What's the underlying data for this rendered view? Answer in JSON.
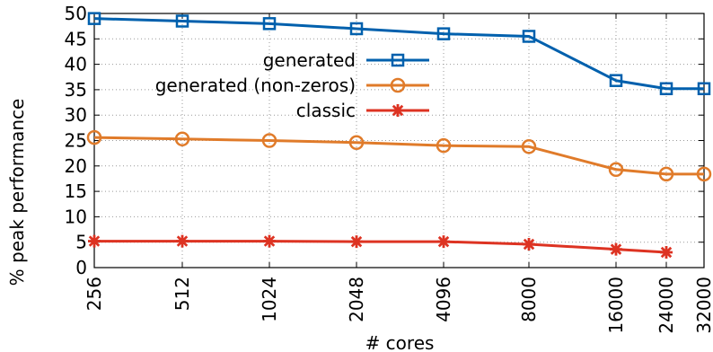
{
  "chart_data": {
    "type": "line",
    "xlabel": "# cores",
    "ylabel": "% peak performance",
    "categories": [
      "256",
      "512",
      "1024",
      "2048",
      "4096",
      "8000",
      "16000",
      "24000",
      "32000"
    ],
    "ylim": [
      0,
      50
    ],
    "yticks": [
      0,
      5,
      10,
      15,
      20,
      25,
      30,
      35,
      40,
      45,
      50
    ],
    "grid": true,
    "legend_position": "top-center",
    "series": [
      {
        "name": "generated",
        "color": "#0060ad",
        "marker": "square",
        "values": [
          49.0,
          48.5,
          48.0,
          47.0,
          46.0,
          45.5,
          36.8,
          35.2,
          35.2
        ]
      },
      {
        "name": "generated (non-zeros)",
        "color": "#e07b2a",
        "marker": "circle",
        "values": [
          25.6,
          25.3,
          25.0,
          24.6,
          24.0,
          23.8,
          19.3,
          18.4,
          18.4
        ]
      },
      {
        "name": "classic",
        "color": "#dd3322",
        "marker": "asterisk",
        "values": [
          5.2,
          5.2,
          5.2,
          5.1,
          5.1,
          4.6,
          3.6,
          3.0,
          null
        ]
      }
    ]
  }
}
